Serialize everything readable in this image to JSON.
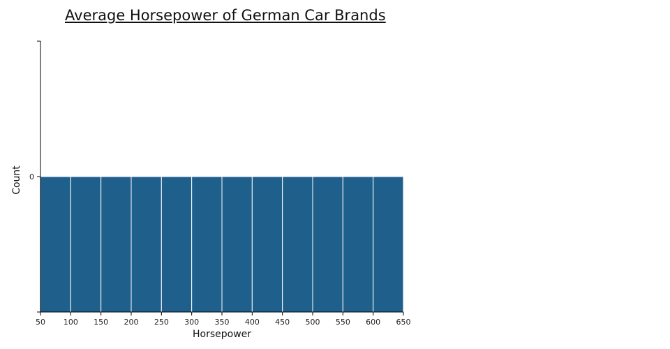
{
  "chart_data": {
    "type": "bar",
    "title": "Average Horsepower of German Car Brands",
    "xlabel": "Horsepower",
    "ylabel": "Count",
    "bin_edges": [
      50,
      100,
      150,
      200,
      250,
      300,
      350,
      400,
      450,
      500,
      550,
      600,
      650
    ],
    "values": [
      0,
      0,
      0,
      0,
      0,
      0,
      0,
      0,
      0,
      0,
      0,
      0
    ],
    "xlim": [
      50,
      650
    ],
    "x_ticks": [
      "50",
      "100",
      "150",
      "200",
      "250",
      "300",
      "350",
      "400",
      "450",
      "500",
      "550",
      "600",
      "650"
    ],
    "y_ticks": [
      "0"
    ],
    "bar_color": "#1f5f8b",
    "grid": false
  }
}
